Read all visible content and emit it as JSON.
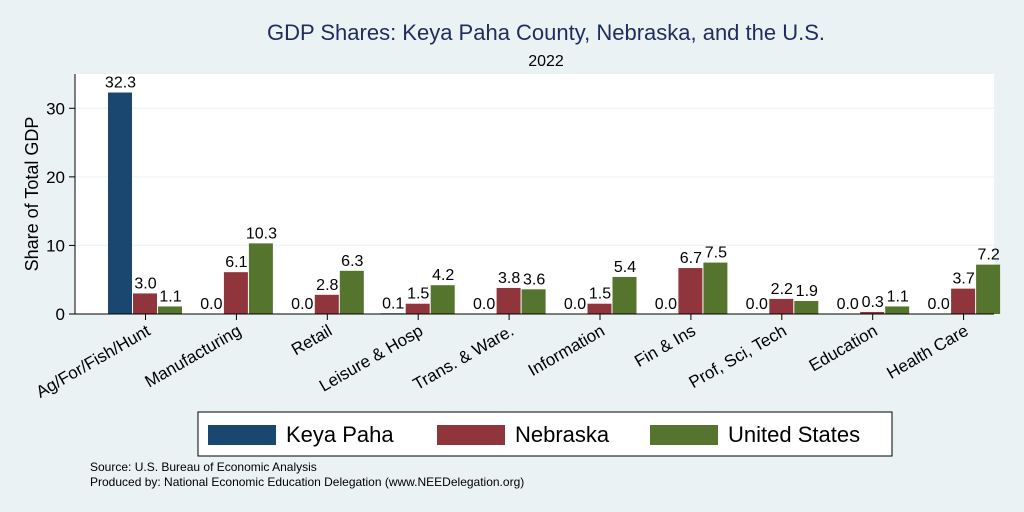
{
  "chart_data": {
    "type": "bar",
    "title": "GDP Shares: Keya Paha County, Nebraska, and the U.S.",
    "subtitle": "2022",
    "xlabel": "",
    "ylabel": "Share of Total GDP",
    "ylim": [
      0,
      35
    ],
    "yticks": [
      0,
      10,
      20,
      30
    ],
    "grid": true,
    "legend_position": "bottom",
    "categories": [
      "Ag/For/Fish/Hunt",
      "Manufacturing",
      "Retail",
      "Leisure & Hosp",
      "Trans. & Ware.",
      "Information",
      "Fin & Ins",
      "Prof, Sci, Tech",
      "Education",
      "Health Care"
    ],
    "series": [
      {
        "name": "Keya Paha",
        "color": "#1a476f",
        "values": [
          32.3,
          0.0,
          0.0,
          0.1,
          0.0,
          0.0,
          0.0,
          0.0,
          0.0,
          0.0
        ],
        "labels": [
          "32.3",
          "0.0",
          "0.0",
          "0.1",
          "0.0",
          "0.0",
          "0.0",
          "0.0",
          "0.0",
          "0.0"
        ]
      },
      {
        "name": "Nebraska",
        "color": "#90353b",
        "values": [
          3.0,
          6.1,
          2.8,
          1.5,
          3.8,
          1.5,
          6.7,
          2.2,
          0.3,
          3.7
        ],
        "labels": [
          "3.0",
          "6.1",
          "2.8",
          "1.5",
          "3.8",
          "1.5",
          "6.7",
          "2.2",
          "0.3",
          "3.7"
        ]
      },
      {
        "name": "United States",
        "color": "#55752f",
        "values": [
          1.1,
          10.3,
          6.3,
          4.2,
          3.6,
          5.4,
          7.5,
          1.9,
          1.1,
          7.2
        ],
        "labels": [
          "1.1",
          "10.3",
          "6.3",
          "4.2",
          "3.6",
          "5.4",
          "7.5",
          "1.9",
          "1.1",
          "7.2"
        ]
      }
    ]
  },
  "footer": {
    "source": "Source: U.S. Bureau of Economic Analysis",
    "produced_by": "Produced by: National Economic Education Delegation (www.NEEDelegation.org)"
  }
}
